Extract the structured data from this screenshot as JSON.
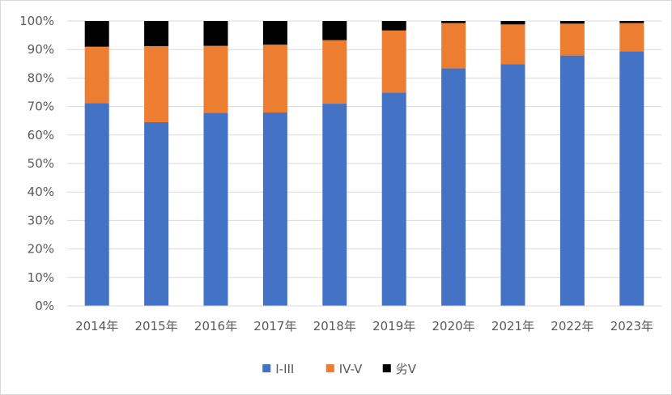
{
  "chart_data": {
    "type": "bar",
    "stacked": true,
    "percent": true,
    "title": "",
    "xlabel": "",
    "ylabel": "",
    "ylim": [
      0,
      100
    ],
    "yticks": [
      "0%",
      "10%",
      "20%",
      "30%",
      "40%",
      "50%",
      "60%",
      "70%",
      "80%",
      "90%",
      "100%"
    ],
    "categories": [
      "2014年",
      "2015年",
      "2016年",
      "2017年",
      "2018年",
      "2019年",
      "2020年",
      "2021年",
      "2022年",
      "2023年"
    ],
    "series": [
      {
        "name": "I-III",
        "color": "#4472C4",
        "values": [
          71.2,
          64.5,
          67.8,
          67.9,
          71.0,
          74.9,
          83.4,
          84.8,
          87.9,
          89.4
        ]
      },
      {
        "name": "IV-V",
        "color": "#ED7D31",
        "values": [
          19.8,
          26.7,
          23.5,
          23.8,
          22.3,
          21.8,
          15.9,
          14.0,
          11.2,
          9.9
        ]
      },
      {
        "name": "劣V",
        "color": "#000000",
        "values": [
          9.0,
          8.8,
          8.7,
          8.3,
          6.7,
          3.3,
          0.7,
          1.2,
          0.9,
          0.7
        ]
      }
    ],
    "grid": true,
    "legend": "bottom"
  }
}
